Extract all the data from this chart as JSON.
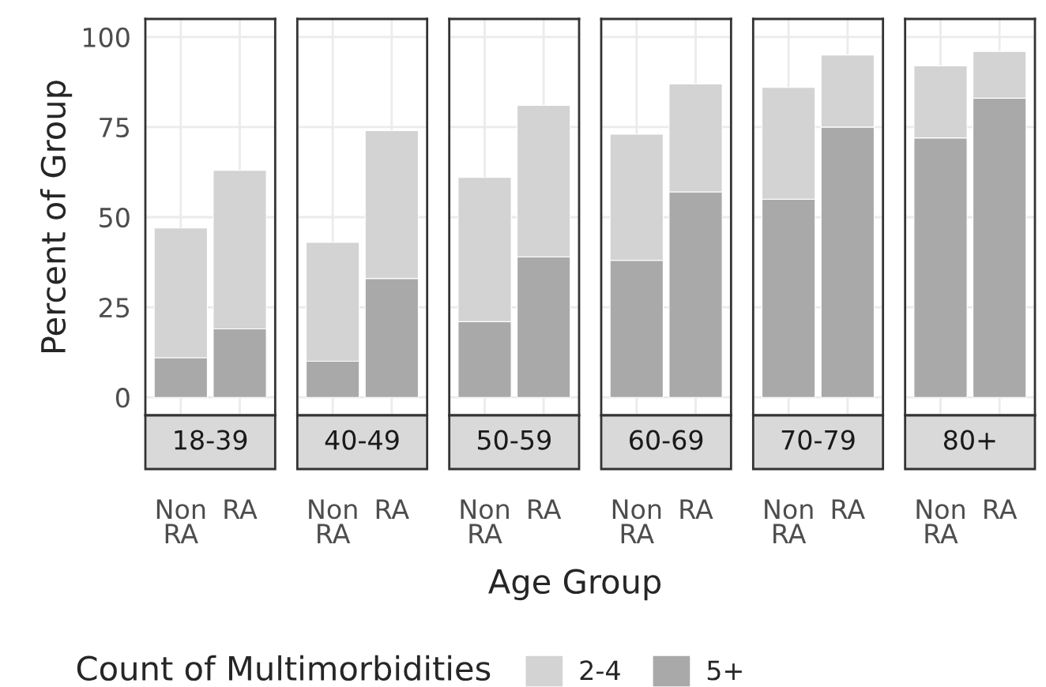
{
  "chart_data": [
    {
      "type": "bar",
      "title": "18-39",
      "ylabel": "Percent of Group",
      "legend_title": "Count of Multimorbidities",
      "legend": "bottom",
      "stacked": true,
      "grid": true,
      "categories": [
        "Non\nRA",
        "RA"
      ],
      "ylim": [
        -5,
        105
      ],
      "yticks": [
        0,
        25,
        50,
        75,
        100
      ],
      "series": [
        {
          "name": "5+",
          "color": "#a9a9a9",
          "values": [
            11,
            19
          ]
        },
        {
          "name": "2-4",
          "color": "#d3d3d3",
          "values": [
            36,
            44
          ]
        }
      ]
    },
    {
      "type": "bar",
      "title": "40-49",
      "stacked": true,
      "grid": true,
      "categories": [
        "Non\nRA",
        "RA"
      ],
      "ylim": [
        -5,
        105
      ],
      "yticks": [
        0,
        25,
        50,
        75,
        100
      ],
      "tick_labels": "x",
      "series": [
        {
          "color": "#a9a9a9",
          "values": [
            10,
            33
          ]
        },
        {
          "color": "#d3d3d3",
          "values": [
            33,
            41
          ]
        }
      ]
    },
    {
      "type": "bar",
      "title": "50-59",
      "xlabel": "Age Group",
      "stacked": true,
      "grid": true,
      "categories": [
        "Non\nRA",
        "RA"
      ],
      "ylim": [
        -5,
        105
      ],
      "yticks": [
        0,
        25,
        50,
        75,
        100
      ],
      "tick_labels": "x",
      "series": [
        {
          "color": "#a9a9a9",
          "values": [
            21,
            39
          ]
        },
        {
          "color": "#d3d3d3",
          "values": [
            40,
            42
          ]
        }
      ]
    },
    {
      "type": "bar",
      "title": "60-69",
      "stacked": true,
      "grid": true,
      "categories": [
        "Non\nRA",
        "RA"
      ],
      "ylim": [
        -5,
        105
      ],
      "yticks": [
        0,
        25,
        50,
        75,
        100
      ],
      "tick_labels": "x",
      "series": [
        {
          "color": "#a9a9a9",
          "values": [
            38,
            57
          ]
        },
        {
          "color": "#d3d3d3",
          "values": [
            35,
            30
          ]
        }
      ]
    },
    {
      "type": "bar",
      "title": "70-79",
      "stacked": true,
      "grid": true,
      "categories": [
        "Non\nRA",
        "RA"
      ],
      "ylim": [
        -5,
        105
      ],
      "yticks": [
        0,
        25,
        50,
        75,
        100
      ],
      "tick_labels": "x",
      "series": [
        {
          "color": "#a9a9a9",
          "values": [
            55,
            75
          ]
        },
        {
          "color": "#d3d3d3",
          "values": [
            31,
            20
          ]
        }
      ]
    },
    {
      "type": "bar",
      "title": "80+",
      "stacked": true,
      "grid": true,
      "categories": [
        "Non\nRA",
        "RA"
      ],
      "ylim": [
        -5,
        105
      ],
      "yticks": [
        0,
        25,
        50,
        75,
        100
      ],
      "tick_labels": "x",
      "series": [
        {
          "color": "#a9a9a9",
          "values": [
            72,
            83
          ]
        },
        {
          "color": "#d3d3d3",
          "values": [
            20,
            13
          ]
        }
      ]
    }
  ]
}
